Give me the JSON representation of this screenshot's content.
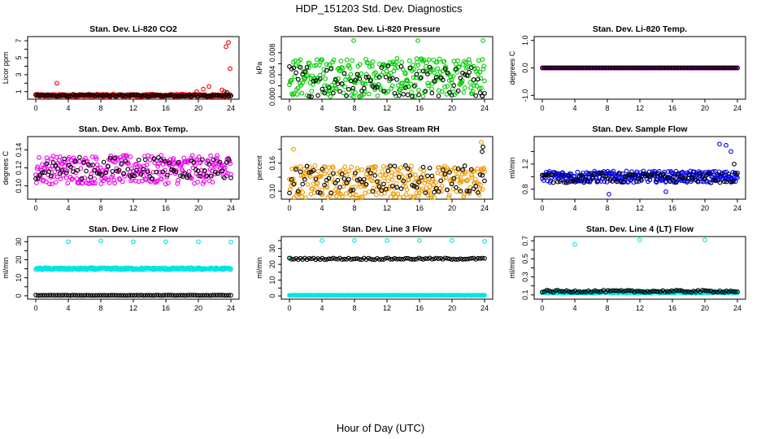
{
  "figure": {
    "title": "HDP_151203  Std. Dev. Diagnostics",
    "xlabel": "Hour of Day (UTC)"
  },
  "chart_data": [
    {
      "type": "scatter",
      "title": "Stan. Dev. Li-820 CO2",
      "ylabel": "Licor ppm",
      "xlim": [
        0,
        24
      ],
      "ylim": [
        0.4,
        7.2
      ],
      "xticks": [
        0,
        4,
        8,
        12,
        16,
        20,
        24
      ],
      "yticks": [
        1,
        2,
        3,
        4,
        5,
        6,
        7
      ],
      "ytick_labels": [
        "1",
        "",
        "3",
        "",
        "5",
        "",
        "7"
      ],
      "ytick_rotated": true,
      "series": [
        {
          "role": "primary",
          "color": "#ee0000",
          "base": 0.55,
          "spread": 0.15,
          "outliers": [
            [
              2.6,
              2.0
            ],
            [
              19.8,
              1.0
            ],
            [
              20.6,
              1.3
            ],
            [
              21.3,
              1.6
            ],
            [
              22.9,
              1.2
            ],
            [
              23.4,
              6.3
            ],
            [
              23.7,
              6.8
            ],
            [
              23.9,
              3.7
            ],
            [
              23.2,
              1.0
            ]
          ]
        },
        {
          "role": "secondary",
          "color": "#000000",
          "base": 0.55,
          "spread": 0.1,
          "outliers": [
            [
              23.5,
              0.9
            ]
          ]
        }
      ]
    },
    {
      "type": "scatter",
      "title": "Stan. Dev. Li-820 Pressure",
      "ylabel": "kPa",
      "xlim": [
        0,
        24
      ],
      "ylim": [
        0,
        0.0105
      ],
      "xticks": [
        0,
        4,
        8,
        12,
        16,
        20,
        24
      ],
      "yticks": [
        0.0,
        0.002,
        0.004,
        0.006,
        0.008
      ],
      "ytick_labels": [
        "0.000",
        "",
        "0.004",
        "",
        "0.008"
      ],
      "ytick_rotated": true,
      "series": [
        {
          "role": "primary",
          "color": "#00cc00",
          "base": 0.0035,
          "spread": 0.0035,
          "outliers": [
            [
              7.9,
              0.0102
            ],
            [
              15.8,
              0.0102
            ],
            [
              23.8,
              0.0102
            ]
          ]
        },
        {
          "role": "secondary",
          "color": "#000000",
          "base": 0.003,
          "spread": 0.003,
          "outliers": []
        }
      ]
    },
    {
      "type": "scatter",
      "title": "Stan. Dev. Li-820 Temp.",
      "ylabel": "degrees C",
      "xlim": [
        0,
        24
      ],
      "ylim": [
        -1.05,
        1.05
      ],
      "xticks": [
        0,
        4,
        8,
        12,
        16,
        20,
        24
      ],
      "yticks": [
        -1.0,
        0.0,
        1.0
      ],
      "ytick_labels": [
        "-1.0",
        "0.0",
        "1.0"
      ],
      "ytick_rotated": true,
      "series": [
        {
          "role": "primary",
          "color": "#ee00ee",
          "base": 0.0,
          "spread": 0.0,
          "outliers": []
        },
        {
          "role": "secondary",
          "color": "#000000",
          "base": 0.0,
          "spread": 0.0,
          "outliers": []
        }
      ]
    },
    {
      "type": "scatter",
      "title": "Stan. Dev. Amb. Box Temp.",
      "ylabel": "degrees C",
      "xlim": [
        0,
        24
      ],
      "ylim": [
        0.088,
        0.152
      ],
      "xticks": [
        0,
        4,
        8,
        12,
        16,
        20,
        24
      ],
      "yticks": [
        0.1,
        0.12,
        0.14
      ],
      "ytick_labels": [
        "0.10",
        "0.12",
        "0.14"
      ],
      "ytick_rotated": true,
      "series": [
        {
          "role": "primary",
          "color": "#ee00ee",
          "base": 0.118,
          "spread": 0.016,
          "outliers": []
        },
        {
          "role": "secondary",
          "color": "#000000",
          "base": 0.12,
          "spread": 0.012,
          "outliers": []
        }
      ]
    },
    {
      "type": "scatter",
      "title": "Stan. Dev. Gas Stream RH",
      "ylabel": "percent",
      "xlim": [
        0,
        24
      ],
      "ylim": [
        0.088,
        0.212
      ],
      "xticks": [
        0,
        4,
        8,
        12,
        16,
        20,
        24
      ],
      "yticks": [
        0.1,
        0.13,
        0.16,
        0.19
      ],
      "ytick_labels": [
        "0.10",
        "",
        "0.16",
        ""
      ],
      "ytick_rotated": true,
      "series": [
        {
          "role": "primary",
          "color": "#ee9900",
          "base": 0.12,
          "spread": 0.035,
          "outliers": [
            [
              0.5,
              0.19
            ],
            [
              23.6,
              0.205
            ]
          ]
        },
        {
          "role": "secondary",
          "color": "#000000",
          "base": 0.125,
          "spread": 0.03,
          "outliers": [
            [
              23.8,
              0.195
            ],
            [
              23.7,
              0.185
            ]
          ]
        }
      ]
    },
    {
      "type": "scatter",
      "title": "Stan. Dev. Sample Flow",
      "ylabel": "ml/min",
      "xlim": [
        0,
        24
      ],
      "ylim": [
        0.68,
        1.6
      ],
      "xticks": [
        0,
        4,
        8,
        12,
        16,
        20,
        24
      ],
      "yticks": [
        0.8,
        1.0,
        1.2,
        1.4
      ],
      "ytick_labels": [
        "0.8",
        "",
        "1.2",
        ""
      ],
      "ytick_rotated": true,
      "series": [
        {
          "role": "primary",
          "color": "#0000ee",
          "base": 1.0,
          "spread": 0.09,
          "outliers": [
            [
              21.8,
              1.52
            ],
            [
              22.6,
              1.5
            ],
            [
              23.2,
              1.4
            ],
            [
              8.2,
              0.72
            ],
            [
              15.2,
              0.76
            ]
          ]
        },
        {
          "role": "secondary",
          "color": "#000000",
          "base": 0.98,
          "spread": 0.08,
          "outliers": [
            [
              23.6,
              1.2
            ]
          ]
        }
      ]
    },
    {
      "type": "scatter",
      "title": "Stan. Dev. Line 2 Flow",
      "ylabel": "ml/min",
      "xlim": [
        0,
        24
      ],
      "ylim": [
        -0.5,
        31.5
      ],
      "xticks": [
        0,
        4,
        8,
        12,
        16,
        20,
        24
      ],
      "yticks": [
        0,
        5,
        10,
        15,
        20,
        25,
        30
      ],
      "ytick_labels": [
        "0",
        "",
        "10",
        "",
        "20",
        "",
        "30"
      ],
      "ytick_rotated": true,
      "series": [
        {
          "role": "primary",
          "color": "#00e5e5",
          "base": 15.0,
          "spread": 0.6,
          "outliers": [
            [
              4.0,
              30.0
            ],
            [
              8.0,
              30.5
            ],
            [
              12.0,
              30.0
            ],
            [
              16.0,
              30.0
            ],
            [
              20.0,
              30.0
            ],
            [
              24.0,
              29.8
            ]
          ]
        },
        {
          "role": "secondary",
          "color": "#000000",
          "base": 0.3,
          "spread": 0.1,
          "outliers": []
        }
      ]
    },
    {
      "type": "scatter",
      "title": "Stan. Dev. Line 3 Flow",
      "ylabel": "ml/min",
      "xlim": [
        0,
        24
      ],
      "ylim": [
        -0.5,
        36
      ],
      "xticks": [
        0,
        4,
        8,
        12,
        16,
        20,
        24
      ],
      "yticks": [
        0,
        5,
        10,
        15,
        20,
        25,
        30,
        35
      ],
      "ytick_labels": [
        "0",
        "",
        "10",
        "",
        "20",
        "",
        "30",
        ""
      ],
      "ytick_rotated": true,
      "series": [
        {
          "role": "primary",
          "color": "#00e5e5",
          "base": 0.4,
          "spread": 0.1,
          "outliers": [
            [
              0.1,
              24.0
            ],
            [
              4.0,
              35.0
            ],
            [
              8.0,
              35.0
            ],
            [
              12.0,
              35.0
            ],
            [
              16.0,
              35.0
            ],
            [
              20.0,
              35.0
            ],
            [
              24.0,
              34.5
            ]
          ]
        },
        {
          "role": "secondary",
          "color": "#000000",
          "base": 23.5,
          "spread": 0.5,
          "outliers": []
        }
      ]
    },
    {
      "type": "scatter",
      "title": "Stan. Dev. Line 4 (LT) Flow",
      "ylabel": "ml/min",
      "xlim": [
        0,
        24
      ],
      "ylim": [
        0.08,
        0.72
      ],
      "xticks": [
        0,
        4,
        8,
        12,
        16,
        20,
        24
      ],
      "yticks": [
        0.1,
        0.2,
        0.3,
        0.4,
        0.5,
        0.6,
        0.7
      ],
      "ytick_labels": [
        "0.1",
        "",
        "0.3",
        "",
        "0.5",
        "",
        "0.7"
      ],
      "ytick_rotated": true,
      "series": [
        {
          "role": "primary",
          "color": "#00e5e5",
          "base": 0.13,
          "spread": 0.012,
          "outliers": [
            [
              4.0,
              0.66
            ],
            [
              12.0,
              0.71
            ],
            [
              20.0,
              0.71
            ]
          ]
        },
        {
          "role": "secondary",
          "color": "#000000",
          "base": 0.14,
          "spread": 0.012,
          "outliers": []
        }
      ]
    }
  ]
}
